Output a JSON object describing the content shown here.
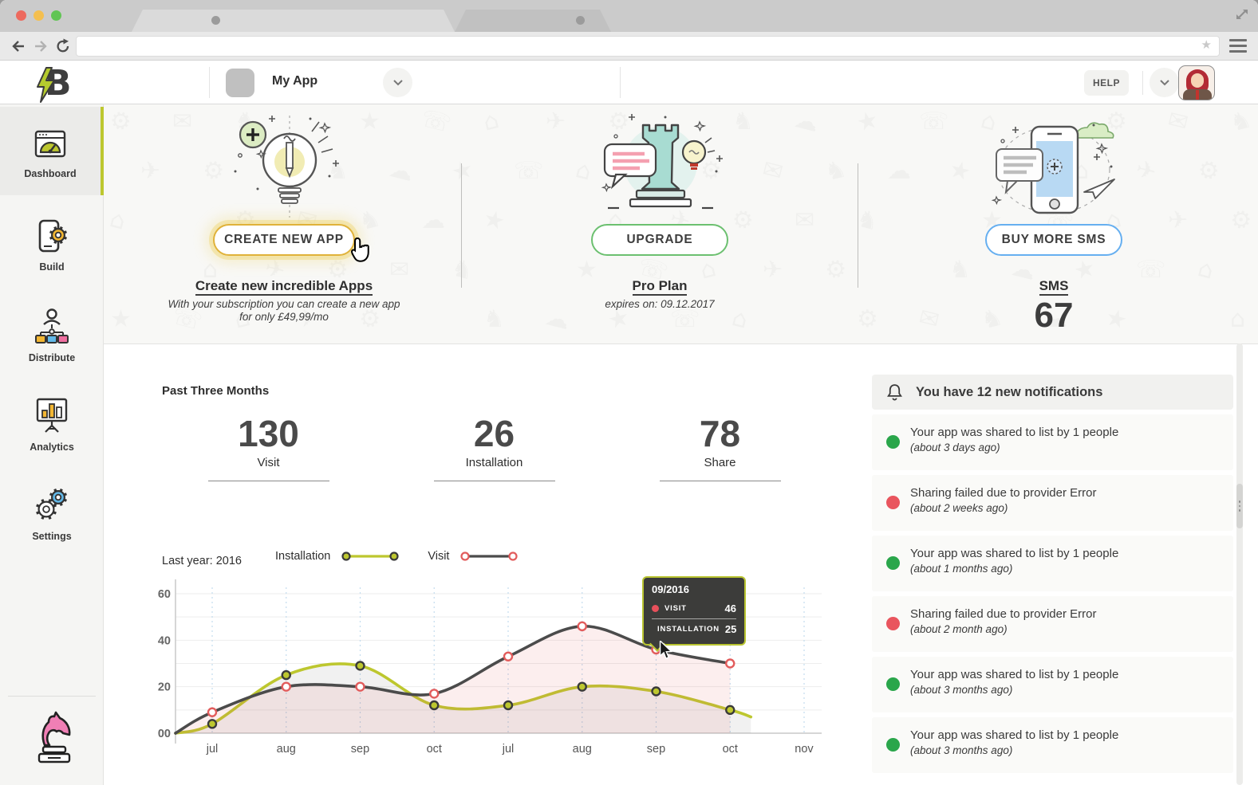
{
  "browser": {
    "address_url": ""
  },
  "header": {
    "logo_letter": "B",
    "app_name": "My App",
    "help_label": "HELP"
  },
  "sidebar": {
    "items": [
      {
        "id": "dashboard",
        "label": "Dashboard",
        "active": true
      },
      {
        "id": "build",
        "label": "Build",
        "active": false
      },
      {
        "id": "distribute",
        "label": "Distribute",
        "active": false
      },
      {
        "id": "analytics",
        "label": "Analytics",
        "active": false
      },
      {
        "id": "settings",
        "label": "Settings",
        "active": false
      }
    ]
  },
  "hero": {
    "cards": [
      {
        "id": "create-app",
        "button_label": "CREATE NEW APP",
        "heading": "Create new incredible Apps",
        "subline1": "With your subscription you can create a new app",
        "subline2": "for only £49,99/mo",
        "accent_color": "#e0b23a"
      },
      {
        "id": "upgrade",
        "button_label": "UPGRADE",
        "heading": "Pro Plan",
        "subline1": "expires on: 09.12.2017",
        "accent_color": "#6cc070"
      },
      {
        "id": "buy-sms",
        "button_label": "BUY MORE SMS",
        "heading": "SMS",
        "value": "67",
        "accent_color": "#66aff0"
      }
    ]
  },
  "stats": {
    "heading": "Past Three Months",
    "items": [
      {
        "value": "130",
        "label": "Visit"
      },
      {
        "value": "26",
        "label": "Installation"
      },
      {
        "value": "78",
        "label": "Share"
      }
    ]
  },
  "chart_data": {
    "type": "line",
    "note": "Last year: 2016",
    "categories": [
      "jul",
      "aug",
      "sep",
      "oct",
      "jul",
      "aug",
      "sep",
      "oct",
      "nov"
    ],
    "ylim": [
      0,
      60
    ],
    "grid_step": 10,
    "ytick_values": [
      0,
      20,
      40,
      60
    ],
    "ytick_labels": [
      "00",
      "20",
      "40",
      "60"
    ],
    "legend_position": "top",
    "series": [
      {
        "name": "Installation",
        "color": "#bdc72f",
        "dot_fill": "#bdc72f",
        "dot_stroke": "#3a3a3a",
        "area_fill": "rgba(120,120,120,0.10)",
        "values": [
          4,
          25,
          29,
          12,
          12,
          20,
          18,
          10
        ],
        "tail": true
      },
      {
        "name": "Visit",
        "color": "#4b4b4b",
        "dot_fill": "#ffffff",
        "dot_stroke": "#e25c5c",
        "area_fill": "rgba(226,92,92,0.10)",
        "values": [
          9,
          20,
          20,
          17,
          33,
          46,
          36,
          30
        ],
        "tail": false
      }
    ]
  },
  "tooltip": {
    "title": "09/2016",
    "rows": [
      {
        "label": "VISIT",
        "value": "46",
        "dot_color": "#e8505b"
      },
      {
        "label": "INSTALLATION",
        "value": "25",
        "dot_color": "#bdc72f"
      }
    ]
  },
  "notifications": {
    "header": "You have 12 new notifications",
    "items": [
      {
        "text": "Your app was shared to list by 1 people",
        "time": "(about 3 days ago)",
        "status_color": "#2aa64b"
      },
      {
        "text": "Sharing failed due to provider Error",
        "time": "(about 2 weeks ago)",
        "status_color": "#e9555e"
      },
      {
        "text": "Your app was shared to list by 1 people",
        "time": "(about 1 months ago)",
        "status_color": "#2aa64b"
      },
      {
        "text": "Sharing failed due to provider Error",
        "time": "(about 2 month ago)",
        "status_color": "#e9555e"
      },
      {
        "text": "Your app was shared to list by 1 people",
        "time": "(about 3 months ago)",
        "status_color": "#2aa64b"
      },
      {
        "text": "Your app was shared to list by 1 people",
        "time": "(about 3 months ago)",
        "status_color": "#2aa64b"
      }
    ]
  }
}
